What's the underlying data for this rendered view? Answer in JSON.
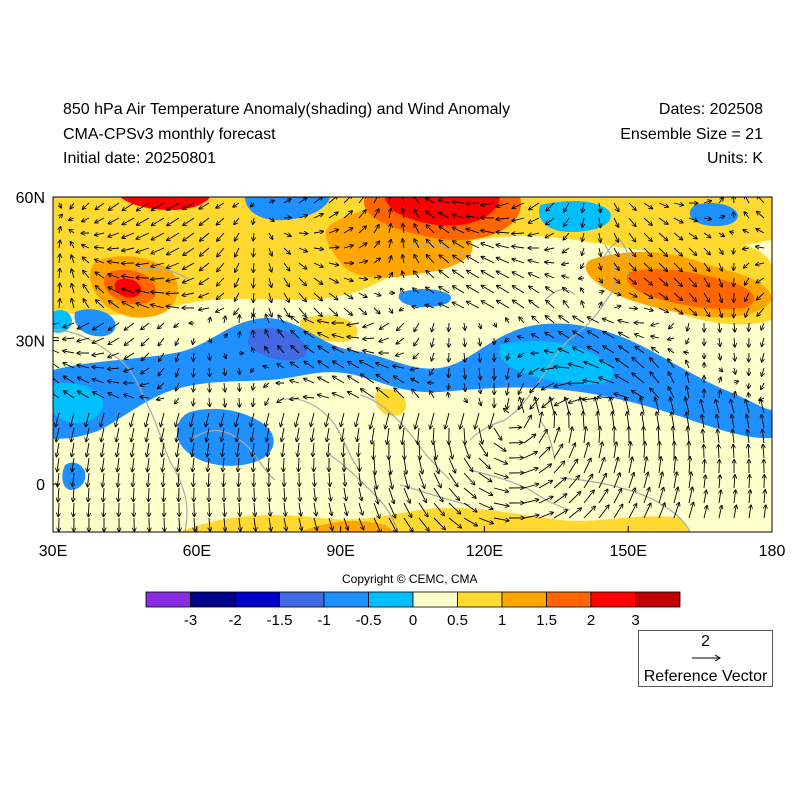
{
  "header": {
    "title_line1": "850 hPa Air Temperature Anomaly(shading) and Wind Anomaly",
    "title_line2": "CMA-CPSv3 monthly forecast",
    "initial_date": "Initial date: 20250801",
    "dates": "Dates: 202508",
    "ensemble": "Ensemble Size = 21",
    "units": "Units: K"
  },
  "map": {
    "lon_ticks": [
      "30E",
      "60E",
      "90E",
      "120E",
      "150E",
      "180"
    ],
    "lat_ticks": [
      "60N",
      "30N",
      "0"
    ],
    "lon_range": [
      30,
      180
    ],
    "lat_range": [
      -10,
      60
    ],
    "shading_variable": "850 hPa air temperature anomaly",
    "vector_variable": "850 hPa wind anomaly"
  },
  "colorbar": {
    "colors": [
      "#8a2be2",
      "#00008b",
      "#0000cd",
      "#4169e1",
      "#1e90ff",
      "#00bfff",
      "#ffffcc",
      "#ffd92f",
      "#ffa500",
      "#ff6600",
      "#ff0000",
      "#c00000"
    ],
    "tick_labels": [
      "-3",
      "-2",
      "-1.5",
      "-1",
      "-0.5",
      "0",
      "0.5",
      "1",
      "1.5",
      "2",
      "3"
    ]
  },
  "copyright": "Copyright © CEMC, CMA",
  "reference_vector": {
    "magnitude": "2",
    "label": "Reference Vector"
  }
}
